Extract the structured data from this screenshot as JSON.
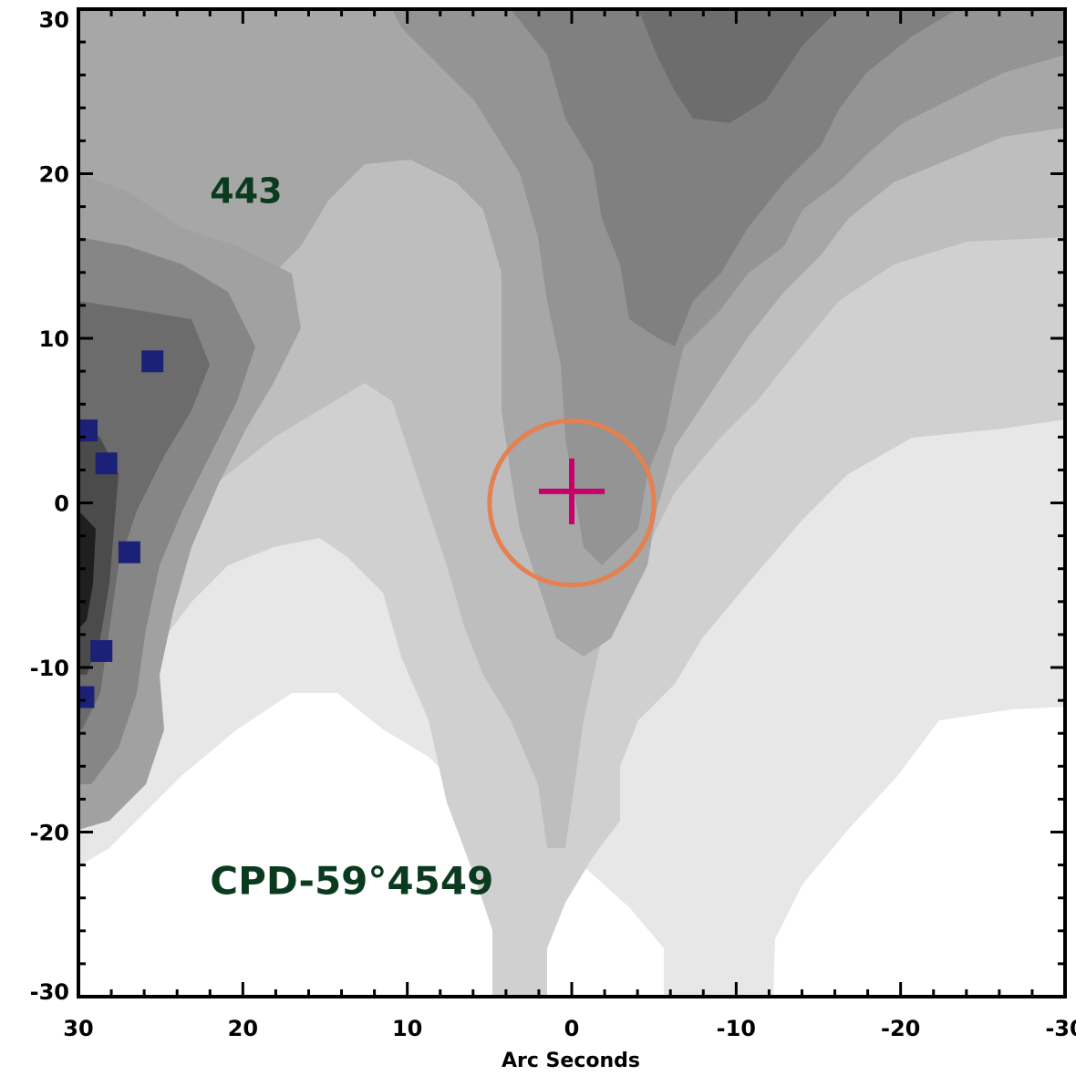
{
  "chart_data": {
    "type": "heatmap",
    "xlabel": "Arc Seconds",
    "ylabel": "",
    "xlim": [
      30,
      -30
    ],
    "ylim": [
      -30,
      30
    ],
    "x_ticks": [
      30,
      20,
      10,
      0,
      -10,
      -20,
      -30
    ],
    "y_ticks": [
      30,
      20,
      10,
      0,
      -10,
      -20,
      -30
    ],
    "x_tick_labels": [
      "30",
      "20",
      "10",
      "0",
      "-10",
      "-20",
      "-30"
    ],
    "y_tick_labels": [
      "30",
      "20",
      "10",
      "0",
      "-10",
      "-20",
      "-30"
    ],
    "annotations": [
      {
        "text": "443",
        "x": 22,
        "y": 19
      },
      {
        "text": "CPD-59°4549",
        "x": 22,
        "y": -23
      }
    ],
    "circle": {
      "cx": 0,
      "cy": 0,
      "r": 5,
      "color": "#e58050"
    },
    "cross": {
      "x": 0,
      "y": 0.7,
      "half_size": 2,
      "color": "#c8006a"
    },
    "blue_pixels": [
      {
        "x": 25.5,
        "y": 8.6
      },
      {
        "x": 29.5,
        "y": 4.4
      },
      {
        "x": 28.3,
        "y": 2.4
      },
      {
        "x": 26.9,
        "y": -3
      },
      {
        "x": 28.6,
        "y": -9
      },
      {
        "x": 29.7,
        "y": -11.8
      }
    ],
    "colors": {
      "blue": "#1c2178",
      "circle": "#e58050",
      "cross": "#c8006a",
      "text": "#0b3b1f"
    }
  }
}
